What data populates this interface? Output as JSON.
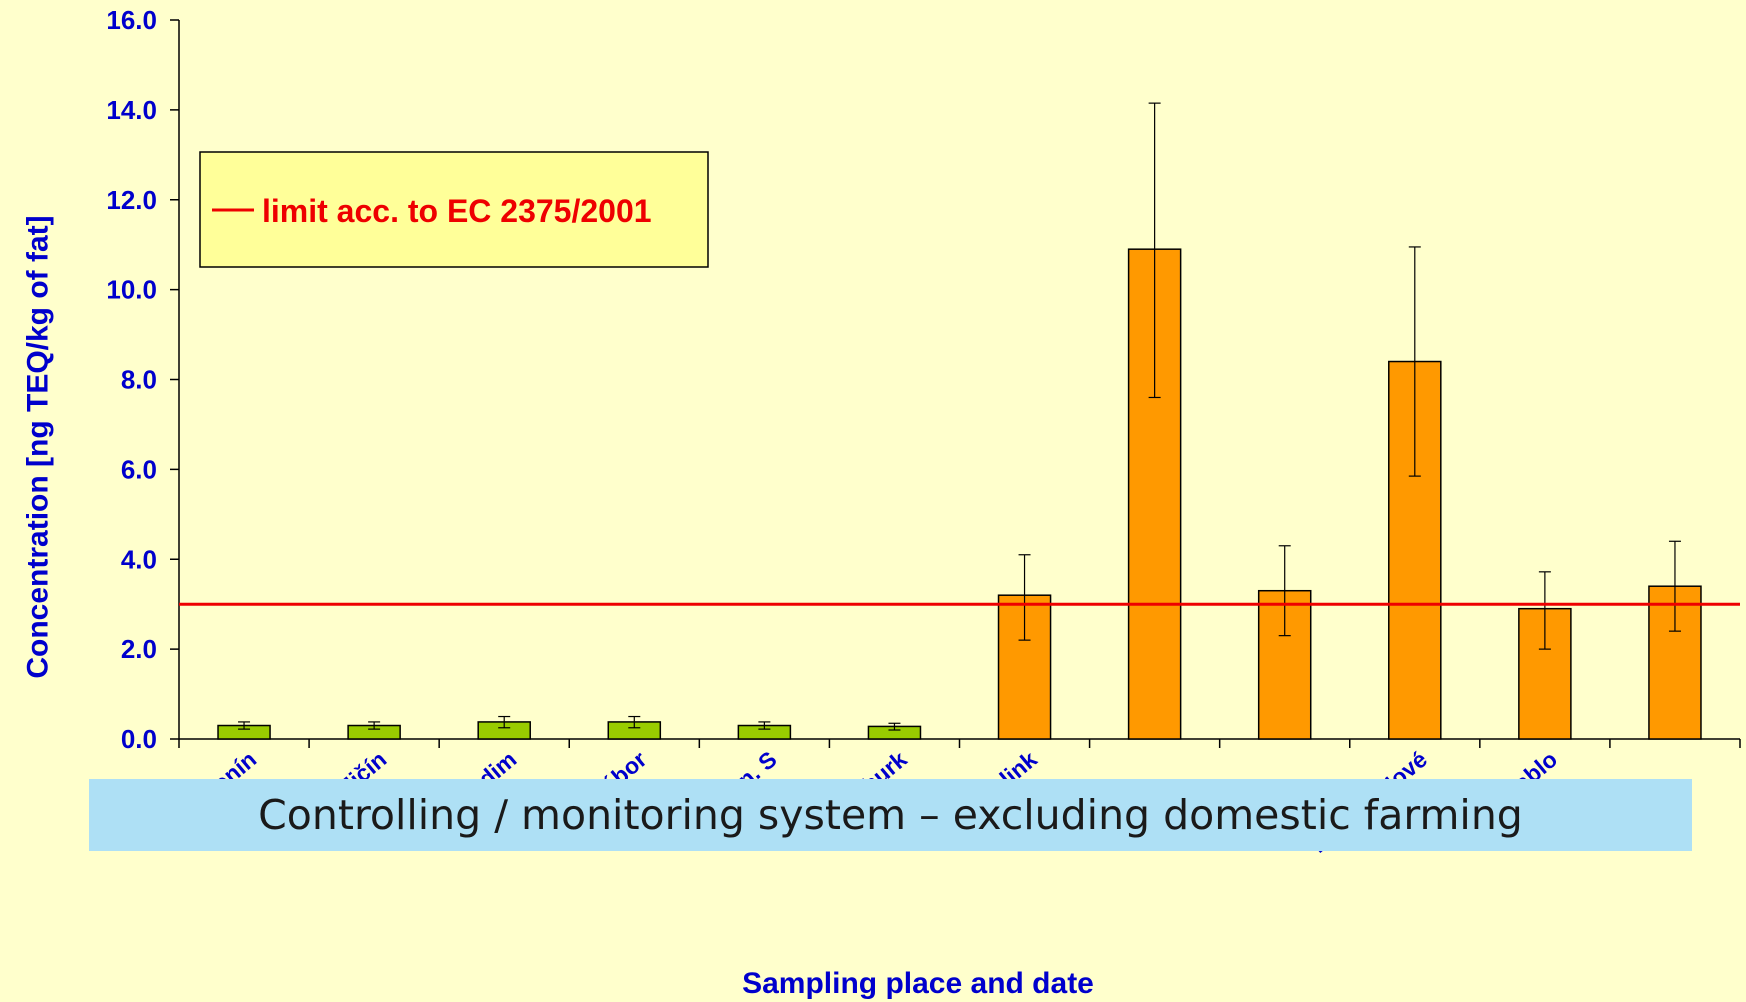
{
  "chart_data": {
    "type": "bar",
    "ylabel": "Concentration [ng TEQ/kg of fat]",
    "xlabel": "Sampling place and date",
    "ylim": [
      0,
      16
    ],
    "yticks": [
      "0.0",
      "2.0",
      "4.0",
      "6.0",
      "8.0",
      "10.0",
      "12.0",
      "14.0",
      "16.0"
    ],
    "categories": [
      "Hodonín",
      "Nový Jičín",
      "Chrudim",
      "Tábor",
      "Žďár n. S",
      "Nymburk",
      "Zelink",
      "",
      "",
      "Panské Nové",
      "Jablo",
      ""
    ],
    "values": [
      0.3,
      0.3,
      0.38,
      0.38,
      0.3,
      0.28,
      3.2,
      10.9,
      3.3,
      8.4,
      2.9,
      3.4
    ],
    "error_low": [
      0.22,
      0.22,
      0.25,
      0.25,
      0.22,
      0.2,
      2.2,
      7.6,
      2.3,
      5.85,
      2.0,
      2.4
    ],
    "error_high": [
      0.38,
      0.38,
      0.5,
      0.5,
      0.38,
      0.35,
      4.1,
      14.15,
      4.3,
      10.95,
      3.72,
      4.4
    ],
    "colors": [
      "#99cc00",
      "#99cc00",
      "#99cc00",
      "#99cc00",
      "#99cc00",
      "#99cc00",
      "#ff9900",
      "#ff9900",
      "#ff9900",
      "#ff9900",
      "#ff9900",
      "#ff9900"
    ],
    "limit_line": {
      "value": 3.0,
      "color": "#ee0000",
      "label": "limit acc. to EC 2375/2001"
    },
    "grid": false,
    "legend_position": "top-left"
  },
  "banner": {
    "text": "Controlling / monitoring system – excluding domestic farming"
  }
}
